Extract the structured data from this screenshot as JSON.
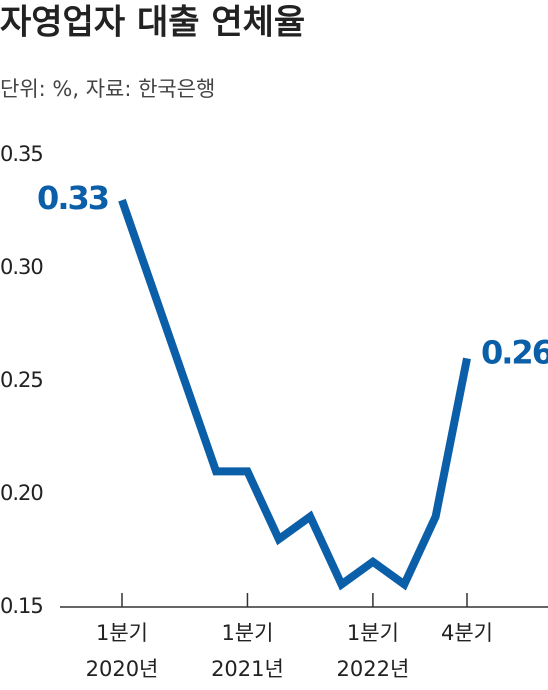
{
  "chart_data": {
    "type": "line",
    "title": "자영업자 대출 연체율",
    "subtitle": "단위: %, 자료: 한국은행",
    "categories": [
      "1분기",
      null,
      null,
      null,
      "1분기",
      null,
      null,
      null,
      "1분기",
      null,
      null,
      "4분기"
    ],
    "category_years": [
      "2020년",
      null,
      null,
      null,
      "2021년",
      null,
      null,
      null,
      "2022년",
      null,
      null,
      null
    ],
    "values": [
      0.33,
      0.29,
      0.25,
      0.21,
      0.21,
      0.18,
      0.19,
      0.16,
      0.17,
      0.16,
      0.19,
      0.26
    ],
    "color": "#0b5fa8",
    "ylim": [
      0.15,
      0.35
    ],
    "yticks": [
      0.15,
      {
        "value": 0.2,
        "label": "0.20"
      },
      0.25,
      {
        "value": 0.3,
        "label": "0.30"
      },
      0.35
    ]
  }
}
